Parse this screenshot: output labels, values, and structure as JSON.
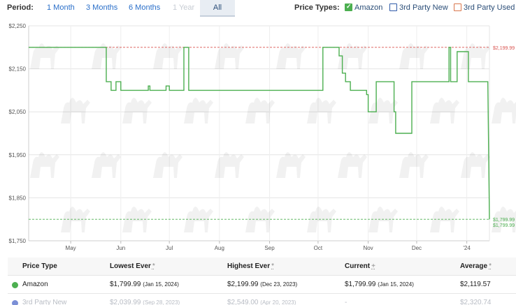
{
  "period": {
    "label": "Period:",
    "options": [
      {
        "label": "1 Month",
        "state": "enabled"
      },
      {
        "label": "3 Months",
        "state": "enabled"
      },
      {
        "label": "6 Months",
        "state": "enabled"
      },
      {
        "label": "1 Year",
        "state": "disabled"
      },
      {
        "label": "All",
        "state": "selected"
      }
    ]
  },
  "price_types": {
    "label": "Price Types:",
    "items": [
      {
        "label": "Amazon",
        "checked": true,
        "color": "#4caf50"
      },
      {
        "label": "3rd Party New",
        "checked": false,
        "color": "#2e5aa8"
      },
      {
        "label": "3rd Party Used",
        "checked": false,
        "color": "#d9764c"
      }
    ]
  },
  "chart_data": {
    "type": "line",
    "x_axis_labels": [
      "May",
      "Jun",
      "Jul",
      "Aug",
      "Sep",
      "Oct",
      "Nov",
      "Dec",
      "'24"
    ],
    "y_axis_labels": [
      "$2,250",
      "$2,150",
      "$2,050",
      "$1,950",
      "$1,850",
      "$1,750"
    ],
    "ylim": [
      1750,
      2250
    ],
    "grid": true,
    "series": [
      {
        "name": "Amazon",
        "color": "#4caf50",
        "points": [
          [
            "2023-04-05",
            2199.99
          ],
          [
            "2023-05-23",
            2199.99
          ],
          [
            "2023-05-23",
            2119.99
          ],
          [
            "2023-05-26",
            2119.99
          ],
          [
            "2023-05-26",
            2099.99
          ],
          [
            "2023-05-29",
            2099.99
          ],
          [
            "2023-05-29",
            2119.99
          ],
          [
            "2023-06-01",
            2119.99
          ],
          [
            "2023-06-01",
            2099.99
          ],
          [
            "2023-06-18",
            2099.99
          ],
          [
            "2023-06-18",
            2109.99
          ],
          [
            "2023-06-19",
            2109.99
          ],
          [
            "2023-06-19",
            2099.99
          ],
          [
            "2023-06-29",
            2099.99
          ],
          [
            "2023-06-29",
            2109.99
          ],
          [
            "2023-07-01",
            2109.99
          ],
          [
            "2023-07-01",
            2099.99
          ],
          [
            "2023-07-10",
            2099.99
          ],
          [
            "2023-07-10",
            2199.99
          ],
          [
            "2023-07-13",
            2199.99
          ],
          [
            "2023-07-13",
            2099.99
          ],
          [
            "2023-10-04",
            2099.99
          ],
          [
            "2023-10-04",
            2199.99
          ],
          [
            "2023-10-14",
            2199.99
          ],
          [
            "2023-10-14",
            2179.99
          ],
          [
            "2023-10-16",
            2179.99
          ],
          [
            "2023-10-16",
            2139.99
          ],
          [
            "2023-10-18",
            2139.99
          ],
          [
            "2023-10-18",
            2119.99
          ],
          [
            "2023-10-21",
            2119.99
          ],
          [
            "2023-10-21",
            2099.99
          ],
          [
            "2023-10-31",
            2099.99
          ],
          [
            "2023-10-31",
            2089.99
          ],
          [
            "2023-11-01",
            2089.99
          ],
          [
            "2023-11-01",
            2049.99
          ],
          [
            "2023-11-06",
            2049.99
          ],
          [
            "2023-11-06",
            2119.99
          ],
          [
            "2023-11-17",
            2119.99
          ],
          [
            "2023-11-17",
            2049.99
          ],
          [
            "2023-11-18",
            2049.99
          ],
          [
            "2023-11-18",
            1999.99
          ],
          [
            "2023-11-28",
            1999.99
          ],
          [
            "2023-11-28",
            2119.99
          ],
          [
            "2023-12-21",
            2119.99
          ],
          [
            "2023-12-21",
            2199.99
          ],
          [
            "2023-12-22",
            2199.99
          ],
          [
            "2023-12-22",
            2119.99
          ],
          [
            "2023-12-26",
            2119.99
          ],
          [
            "2023-12-26",
            2189.99
          ],
          [
            "2024-01-02",
            2189.99
          ],
          [
            "2024-01-02",
            2119.99
          ],
          [
            "2024-01-05",
            2119.99
          ],
          [
            "2024-01-14",
            2119.99
          ],
          [
            "2024-01-15",
            1799.99
          ]
        ]
      }
    ],
    "reference_lines": [
      {
        "value": 2199.99,
        "label": "$2,199.99",
        "color": "#d9534f"
      },
      {
        "value": 1799.99,
        "label": "$1,799.99",
        "color": "#4caf50"
      }
    ],
    "current_label": "$1,799.99"
  },
  "table": {
    "headers": {
      "type": "Price Type",
      "lowest": "Lowest Ever",
      "highest": "Highest Ever",
      "current": "Current",
      "average": "Average"
    },
    "marks": {
      "lowest": "*",
      "highest": "*",
      "current": "+",
      "average": "*"
    },
    "rows": [
      {
        "type": "Amazon",
        "color": "#4caf50",
        "lowest": "$1,799.99",
        "lowest_date": "(Jan 15, 2024)",
        "highest": "$2,199.99",
        "highest_date": "(Dec 23, 2023)",
        "current": "$1,799.99",
        "current_date": "(Jan 15, 2024)",
        "average": "$2,119.57"
      },
      {
        "type": "3rd Party New",
        "color": "#7b8fd6",
        "lowest": "$2,039.99",
        "lowest_date": "(Sep 28, 2023)",
        "highest": "$2,549.00",
        "highest_date": "(Apr 20, 2023)",
        "current": "-",
        "current_date": "",
        "average": "$2,320.74"
      }
    ]
  }
}
